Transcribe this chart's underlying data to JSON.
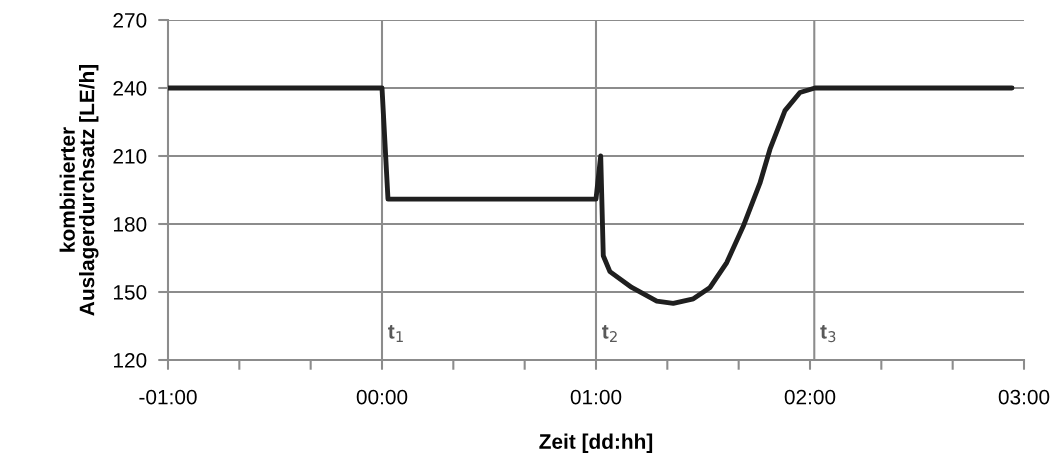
{
  "chart_data": {
    "type": "line",
    "xlabel": "Zeit [dd:hh]",
    "ylabel": "kombinierter\nAuslagerdurchsatz [LE/h]",
    "series": [
      {
        "color": "#1f1f1f",
        "x": [
          -1,
          0.0,
          0.028,
          1.0,
          1.022,
          1.034,
          1.065,
          1.167,
          1.284,
          1.361,
          1.455,
          1.533,
          1.611,
          1.688,
          1.766,
          1.813,
          1.883,
          1.953,
          2.023,
          2.944
        ],
        "values": [
          240,
          240,
          191,
          191,
          210,
          166,
          159,
          152,
          146,
          145,
          147,
          152,
          163,
          179,
          198,
          213,
          230,
          238,
          240,
          240
        ]
      }
    ],
    "xlim": [
      -1,
      3
    ],
    "ylim": [
      120,
      270
    ],
    "xticks": [
      {
        "value": -1,
        "label": "-01:00"
      },
      {
        "value": -0.6667,
        "label": null
      },
      {
        "value": -0.3333,
        "label": null
      },
      {
        "value": 0,
        "label": "00:00"
      },
      {
        "value": 0.3333,
        "label": null
      },
      {
        "value": 0.6667,
        "label": null
      },
      {
        "value": 1,
        "label": "01:00"
      },
      {
        "value": 1.3333,
        "label": null
      },
      {
        "value": 1.6667,
        "label": null
      },
      {
        "value": 2,
        "label": "02:00"
      },
      {
        "value": 2.3333,
        "label": null
      },
      {
        "value": 2.6667,
        "label": null
      },
      {
        "value": 3,
        "label": "03:00"
      }
    ],
    "yticks": [
      120,
      150,
      180,
      210,
      240,
      270
    ],
    "grid": "y",
    "marker": "none",
    "line_style": "solid",
    "ref_lines": [
      {
        "axis": "x",
        "value": 0,
        "label": "t$_{1}$",
        "color": "#8c8c8c"
      },
      {
        "axis": "x",
        "value": 1,
        "label": "t$_{2}$",
        "color": "#8c8c8c"
      },
      {
        "axis": "x",
        "value": 2.02,
        "label": "t$_{3}$",
        "color": "#8c8c8c"
      }
    ]
  }
}
